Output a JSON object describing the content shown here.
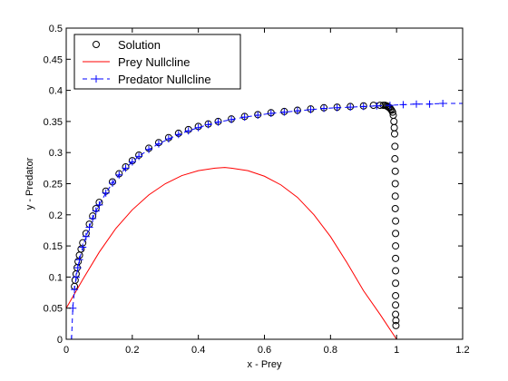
{
  "chart_data": {
    "type": "scatter",
    "title": "",
    "xlabel": "x - Prey",
    "ylabel": "y - Predator",
    "xlim": [
      0,
      1.2
    ],
    "ylim": [
      0,
      0.5
    ],
    "xticks": [
      "0",
      "0.2",
      "0.4",
      "0.6",
      "0.8",
      "1",
      "1.2"
    ],
    "yticks": [
      "0",
      "0.05",
      "0.1",
      "0.15",
      "0.2",
      "0.25",
      "0.3",
      "0.35",
      "0.4",
      "0.45",
      "0.5"
    ],
    "grid": false,
    "legend_position": "top-left",
    "series": [
      {
        "name": "Solution",
        "style": "circles",
        "color": "#000000",
        "x": [
          0.025,
          0.027,
          0.03,
          0.033,
          0.036,
          0.04,
          0.045,
          0.05,
          0.06,
          0.07,
          0.08,
          0.09,
          0.1,
          0.12,
          0.14,
          0.16,
          0.18,
          0.2,
          0.22,
          0.25,
          0.28,
          0.31,
          0.34,
          0.37,
          0.4,
          0.43,
          0.46,
          0.5,
          0.54,
          0.58,
          0.62,
          0.66,
          0.7,
          0.74,
          0.78,
          0.82,
          0.86,
          0.9,
          0.93,
          0.95,
          0.96,
          0.965,
          0.97,
          0.973,
          0.976,
          0.979,
          0.982,
          0.985,
          0.988,
          0.99,
          0.992,
          0.993,
          0.994,
          0.995,
          0.995,
          0.996,
          0.996,
          0.996,
          0.996,
          0.997,
          0.997,
          0.997,
          0.997,
          0.997,
          0.997,
          0.997,
          0.997,
          0.997,
          0.998,
          0.998
        ],
        "y": [
          0.085,
          0.095,
          0.105,
          0.115,
          0.125,
          0.135,
          0.145,
          0.155,
          0.17,
          0.185,
          0.198,
          0.21,
          0.22,
          0.238,
          0.253,
          0.266,
          0.277,
          0.287,
          0.296,
          0.307,
          0.316,
          0.324,
          0.331,
          0.337,
          0.342,
          0.346,
          0.35,
          0.354,
          0.358,
          0.361,
          0.364,
          0.366,
          0.368,
          0.37,
          0.372,
          0.373,
          0.374,
          0.375,
          0.376,
          0.376,
          0.376,
          0.376,
          0.375,
          0.374,
          0.373,
          0.372,
          0.37,
          0.368,
          0.365,
          0.36,
          0.35,
          0.34,
          0.33,
          0.31,
          0.29,
          0.27,
          0.25,
          0.23,
          0.21,
          0.19,
          0.17,
          0.15,
          0.13,
          0.11,
          0.09,
          0.07,
          0.055,
          0.04,
          0.03,
          0.022
        ]
      },
      {
        "name": "Prey Nullcline",
        "style": "line",
        "color": "#ff0000",
        "x": [
          0,
          0.05,
          0.1,
          0.15,
          0.2,
          0.25,
          0.3,
          0.35,
          0.4,
          0.45,
          0.48,
          0.5,
          0.55,
          0.6,
          0.65,
          0.7,
          0.75,
          0.8,
          0.85,
          0.9,
          0.95,
          1
        ],
        "y": [
          0.05,
          0.096,
          0.14,
          0.178,
          0.208,
          0.232,
          0.25,
          0.263,
          0.271,
          0.275,
          0.276,
          0.275,
          0.271,
          0.262,
          0.248,
          0.228,
          0.2,
          0.165,
          0.123,
          0.078,
          0.04,
          0
        ]
      },
      {
        "name": "Predator Nullcline",
        "style": "dash-plus",
        "color": "#0000ff",
        "x": [
          0.016,
          0.02,
          0.025,
          0.03,
          0.035,
          0.04,
          0.05,
          0.06,
          0.07,
          0.08,
          0.09,
          0.1,
          0.12,
          0.14,
          0.16,
          0.18,
          0.2,
          0.22,
          0.25,
          0.28,
          0.31,
          0.34,
          0.37,
          0.4,
          0.43,
          0.46,
          0.5,
          0.54,
          0.58,
          0.62,
          0.66,
          0.7,
          0.74,
          0.78,
          0.82,
          0.86,
          0.9,
          0.94,
          0.98,
          1.02,
          1.06,
          1.1,
          1.14,
          1.2
        ],
        "y": [
          0,
          0.05,
          0.08,
          0.1,
          0.115,
          0.128,
          0.148,
          0.165,
          0.18,
          0.194,
          0.206,
          0.216,
          0.235,
          0.251,
          0.264,
          0.275,
          0.285,
          0.294,
          0.305,
          0.314,
          0.322,
          0.329,
          0.335,
          0.34,
          0.345,
          0.349,
          0.353,
          0.357,
          0.36,
          0.363,
          0.365,
          0.367,
          0.369,
          0.371,
          0.372,
          0.373,
          0.374,
          0.375,
          0.376,
          0.377,
          0.378,
          0.378,
          0.379,
          0.379
        ]
      }
    ]
  }
}
